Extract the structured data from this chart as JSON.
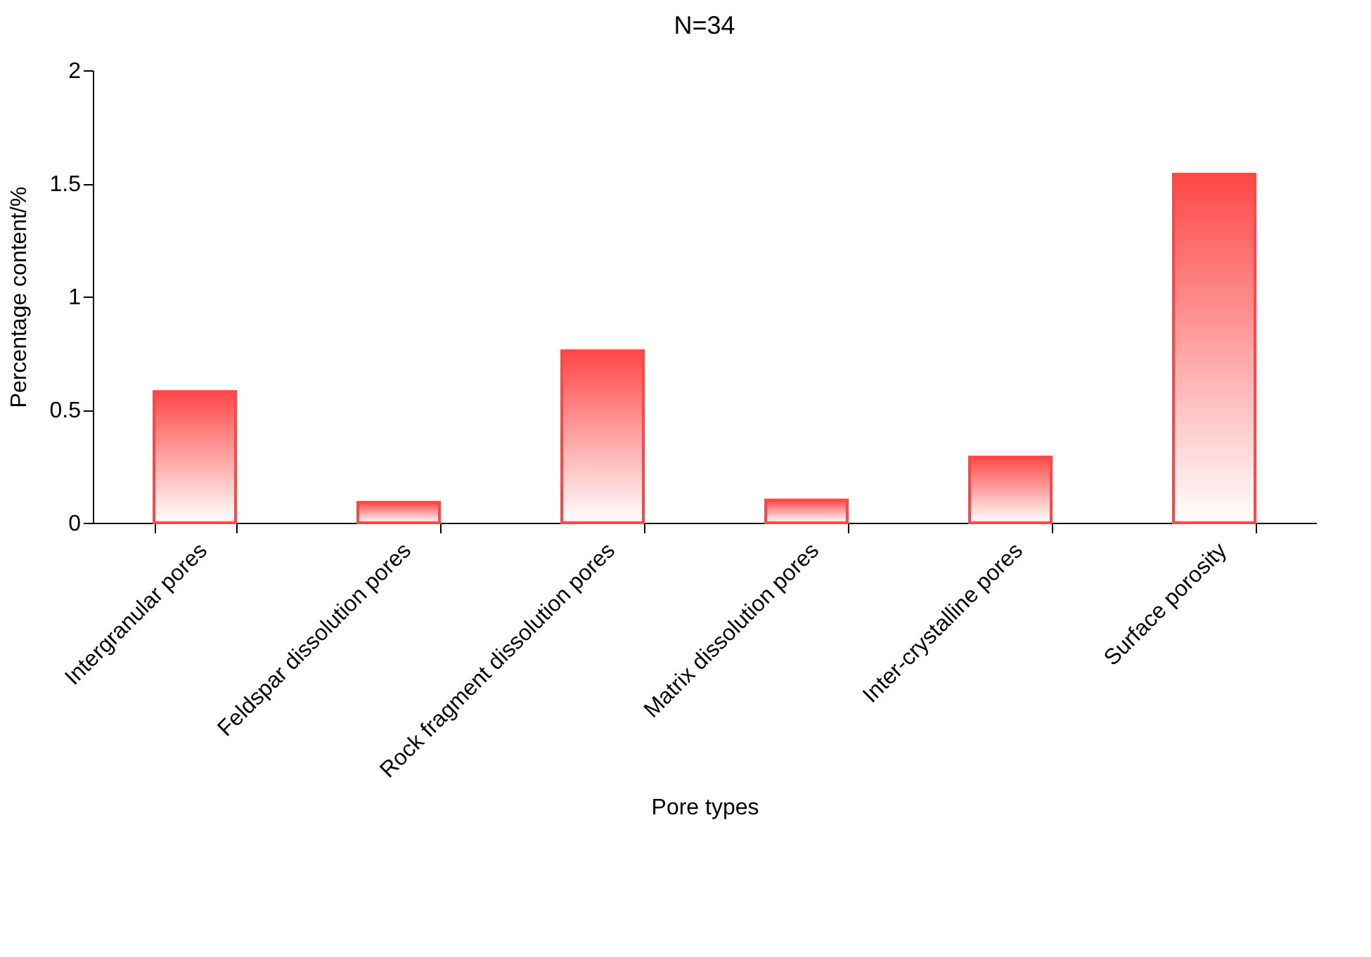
{
  "chart_data": {
    "type": "bar",
    "title": "N=34",
    "xlabel": "Pore types",
    "ylabel": "Percentage content/%",
    "categories": [
      "Intergranular pores",
      "Feldspar dissolution pores",
      "Rock fragment dissolution pores",
      "Matrix dissolution pores",
      "Inter-crystalline pores",
      "Surface porosity"
    ],
    "values": [
      0.58,
      0.09,
      0.76,
      0.1,
      0.29,
      1.54
    ],
    "color": "#ff4747",
    "ylim": [
      0,
      2
    ],
    "yticks": [
      0,
      0.5,
      1,
      1.5,
      2
    ],
    "grid": false
  }
}
